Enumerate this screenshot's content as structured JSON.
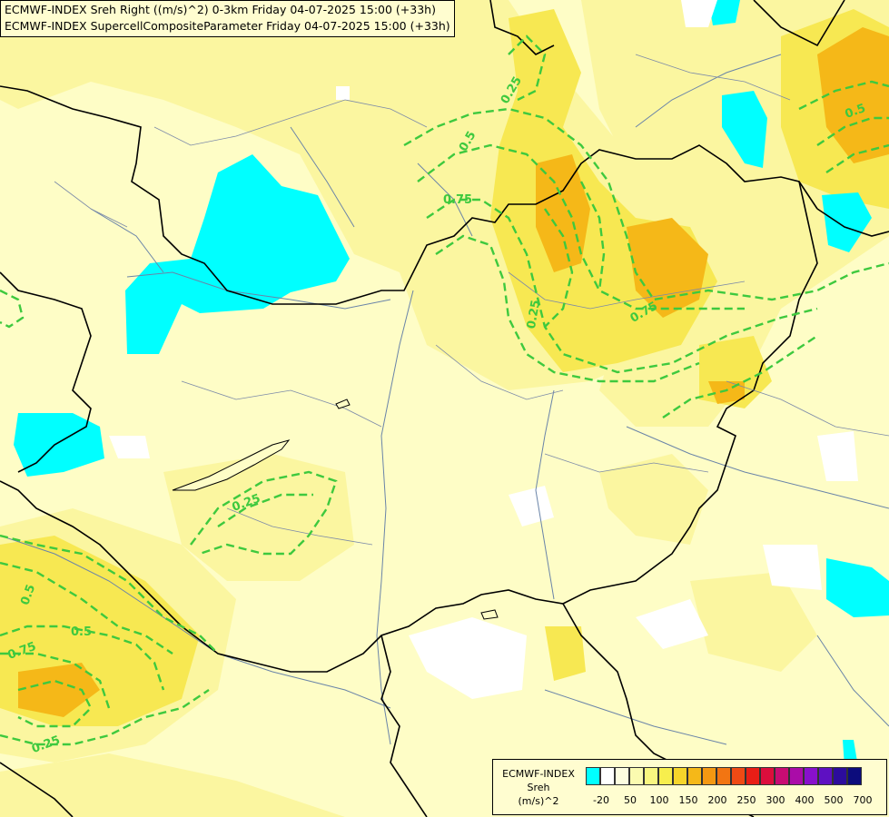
{
  "title": {
    "line1": "ECMWF-INDEX Sreh Right ((m/s)^2) 0-3km Friday 04-07-2025 15:00 (+33h)",
    "line2": "ECMWF-INDEX SupercellCompositeParameter Friday 04-07-2025 15:00 (+33h)"
  },
  "contour_labels": [
    "0.25",
    "0.5",
    "0.75",
    "0.5",
    "0.75",
    "0.25",
    "0.25",
    "0.5",
    "0.5",
    "0.75",
    "0.25"
  ],
  "legend": {
    "line1": "ECMWF-INDEX",
    "line2": "Sreh",
    "line3": "(m/s)^2",
    "ticks": [
      "-20",
      "50",
      "100",
      "150",
      "200",
      "250",
      "300",
      "400",
      "500",
      "700"
    ],
    "colors": [
      "#00ffff",
      "#ffffff",
      "#fdfde0",
      "#fbfbb0",
      "#f9f680",
      "#f7ee4d",
      "#f6d52a",
      "#f5b818",
      "#f49812",
      "#f27512",
      "#ef4a14",
      "#e91e16",
      "#dc0e3c",
      "#c80c73",
      "#aa0ca8",
      "#8810cc",
      "#5e10c2",
      "#2c0c9c",
      "#0c0c7c"
    ]
  },
  "colors": {
    "contour": "#3ec93e",
    "border": "#000000",
    "river": "#6a84a8",
    "shear_low": "#00ffff",
    "shear_mid": "#f9f680",
    "shear_high": "#f5b818"
  }
}
